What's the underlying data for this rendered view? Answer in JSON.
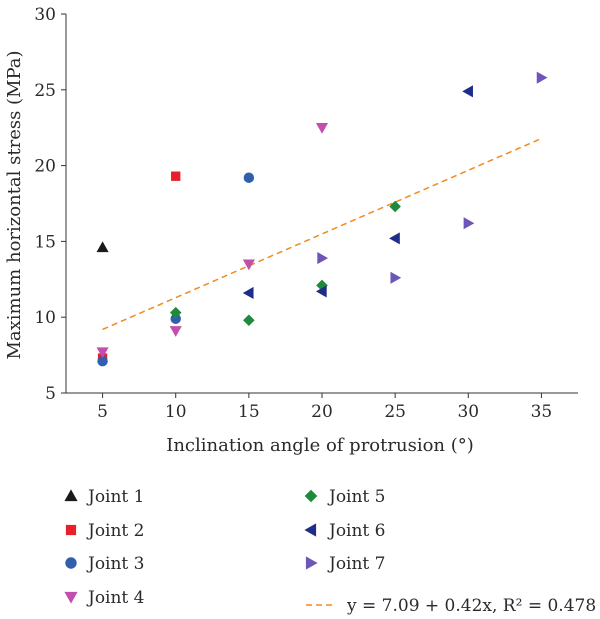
{
  "chart_data": {
    "type": "scatter",
    "xlabel": "Inclination angle of protrusion (°)",
    "ylabel": "Maximum horizontal stress (MPa)",
    "xlim": [
      2.5,
      37.5
    ],
    "ylim": [
      5,
      30
    ],
    "xticks": [
      5,
      10,
      15,
      20,
      25,
      30,
      35
    ],
    "yticks": [
      5,
      10,
      15,
      20,
      25,
      30
    ],
    "grid": false,
    "legend_placement": "bottom",
    "series": [
      {
        "name": "Joint 1",
        "marker": "triangle-up",
        "color": "#1a1a1a",
        "points": [
          [
            5,
            14.6
          ]
        ]
      },
      {
        "name": "Joint 2",
        "marker": "square",
        "color": "#e8202a",
        "points": [
          [
            5,
            7.3
          ],
          [
            10,
            19.3
          ]
        ]
      },
      {
        "name": "Joint 3",
        "marker": "circle",
        "color": "#2f5fad",
        "points": [
          [
            5,
            7.1
          ],
          [
            10,
            9.9
          ],
          [
            15,
            19.2
          ]
        ]
      },
      {
        "name": "Joint 4",
        "marker": "triangle-down",
        "color": "#c24fae",
        "points": [
          [
            5,
            7.7
          ],
          [
            10,
            9.1
          ],
          [
            15,
            13.5
          ],
          [
            20,
            22.5
          ]
        ]
      },
      {
        "name": "Joint 5",
        "marker": "diamond",
        "color": "#1e8a3c",
        "points": [
          [
            10,
            10.3
          ],
          [
            15,
            9.8
          ],
          [
            20,
            12.1
          ],
          [
            25,
            17.3
          ]
        ]
      },
      {
        "name": "Joint 6",
        "marker": "triangle-left",
        "color": "#1f2d8a",
        "points": [
          [
            15,
            11.6
          ],
          [
            20,
            11.7
          ],
          [
            25,
            15.2
          ],
          [
            30,
            24.9
          ]
        ]
      },
      {
        "name": "Joint 7",
        "marker": "triangle-right",
        "color": "#6e55b8",
        "points": [
          [
            20,
            13.9
          ],
          [
            25,
            12.6
          ],
          [
            30,
            16.2
          ],
          [
            35,
            25.8
          ]
        ]
      }
    ],
    "fit": {
      "name": "y = 7.09 + 0.42x, R² = 0.478",
      "intercept": 7.09,
      "slope": 0.42,
      "x_range": [
        5,
        35
      ],
      "color": "#f28a1e",
      "style": "dashed"
    }
  }
}
